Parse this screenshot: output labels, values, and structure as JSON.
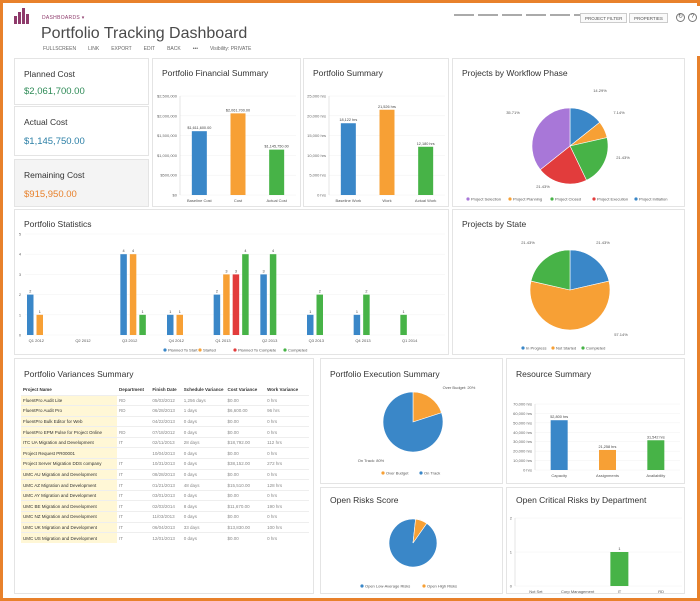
{
  "header": {
    "breadcrumb": "DASHBOARDS ▾",
    "title": "Portfolio Tracking Dashboard",
    "menu": [
      "FULLSCREEN",
      "LINK",
      "EXPORT",
      "EDIT",
      "BACK",
      "•••",
      "Visibility: PRIVATE"
    ],
    "project_filter": "PROJECT FILTER",
    "properties": "PROPERTIES",
    "refresh_icon": "refresh-icon",
    "help_icon": "help-icon"
  },
  "kpis": {
    "planned_cost": {
      "label": "Planned Cost",
      "value": "$2,061,700.00",
      "color": "#2e8b57"
    },
    "actual_cost": {
      "label": "Actual Cost",
      "value": "$1,145,750.00",
      "color": "#2b7fa6"
    },
    "remaining_cost": {
      "label": "Remaining Cost",
      "value": "$915,950.00",
      "color": "#e8812b"
    }
  },
  "colors": {
    "blue": "#3a87c8",
    "orange": "#f7a035",
    "green": "#47b347",
    "red": "#e23c3c",
    "purple": "#a877d8"
  },
  "financial": {
    "title": "Portfolio Financial Summary",
    "chart_data": {
      "type": "bar",
      "categories": [
        "Baseline Cost",
        "Cost",
        "Actual Cost"
      ],
      "values": [
        1611600,
        2061700,
        1145750
      ],
      "labels": [
        "$1,611,600.00",
        "$2,061,700.00",
        "$1,145,750.00"
      ],
      "yticks": [
        "$0",
        "$500,000",
        "$1,000,000",
        "$1,500,000",
        "$2,000,000",
        "$2,500,000"
      ],
      "ylim": [
        0,
        2500000
      ]
    }
  },
  "summary": {
    "title": "Portfolio Summary",
    "chart_data": {
      "type": "bar",
      "categories": [
        "Baseline Work",
        "Work",
        "Actual Work"
      ],
      "values": [
        18122,
        21526,
        12180
      ],
      "labels": [
        "18,122 hrs",
        "21,526 hrs",
        "12,180 hrs"
      ],
      "yticks": [
        "0 hrs",
        "5,000 hrs",
        "10,000 hrs",
        "15,000 hrs",
        "20,000 hrs",
        "25,000 hrs"
      ],
      "ylim": [
        0,
        25000
      ]
    }
  },
  "workflow": {
    "title": "Projects by Workflow Phase",
    "chart_data": {
      "type": "pie",
      "slices": [
        {
          "name": "Project Initiation",
          "value": 14.29
        },
        {
          "name": "Project Planning",
          "value": 7.14
        },
        {
          "name": "Project Closed",
          "value": 21.43
        },
        {
          "name": "Project Execution",
          "value": 21.43
        },
        {
          "name": "Project Selection",
          "value": 35.71
        }
      ],
      "labels": [
        "14.29%",
        "7.14%",
        "21.43%",
        "21.43%",
        "35.71%"
      ],
      "legend": [
        "Project Selection",
        "Project Planning",
        "Project Closed",
        "Project Execution",
        "Project Initiation"
      ]
    }
  },
  "statistics": {
    "title": "Portfolio Statistics",
    "chart_data": {
      "type": "bar",
      "categories": [
        "Q1 2012",
        "Q2 2012",
        "Q3 2012",
        "Q4 2012",
        "Q1 2013",
        "Q2 2013",
        "Q3 2013",
        "Q4 2013",
        "Q1 2014"
      ],
      "series": [
        {
          "name": "Planned To Start",
          "values": [
            2,
            0,
            4,
            1,
            2,
            3,
            1,
            1,
            0
          ]
        },
        {
          "name": "Started",
          "values": [
            1,
            0,
            4,
            1,
            3,
            0,
            0,
            0,
            0
          ]
        },
        {
          "name": "Planned To Complete",
          "values": [
            0,
            0,
            0,
            0,
            3,
            0,
            0,
            0,
            0
          ]
        },
        {
          "name": "Completed",
          "values": [
            0,
            0,
            1,
            0,
            4,
            4,
            2,
            2,
            1
          ]
        }
      ],
      "yticks": [
        "0",
        "1",
        "2",
        "3",
        "4",
        "5"
      ],
      "ylim": [
        0,
        5
      ]
    }
  },
  "state": {
    "title": "Projects by State",
    "chart_data": {
      "type": "pie",
      "slices": [
        {
          "name": "In Progress",
          "value": 21.43
        },
        {
          "name": "Not Started",
          "value": 57.14
        },
        {
          "name": "Completed",
          "value": 21.43
        }
      ],
      "labels": [
        "21.43%",
        "57.14%",
        "21.43%"
      ],
      "legend": [
        "In Progress",
        "Not Started",
        "Completed"
      ]
    }
  },
  "variances": {
    "title": "Portfolio Variances Summary",
    "columns": [
      "Project Name",
      "Department",
      "Finish Date",
      "Schedule Variance",
      "Cost Variance",
      "Work Variance"
    ],
    "rows": [
      [
        "FluentPro Audit Lite",
        "RD",
        "05/03/2012",
        "1,256 days",
        "$0.00",
        "0 hrs"
      ],
      [
        "FluentPro Audit Pro",
        "RD",
        "06/28/2013",
        "1 days",
        "$6,600.00",
        "96 hrs"
      ],
      [
        "FluentPro Bulk Editor for Web",
        "",
        "04/22/2013",
        "0 days",
        "$0.00",
        "0 hrs"
      ],
      [
        "FluentPro EPM Pulse for Project Online",
        "RD",
        "07/18/2012",
        "0 days",
        "$0.00",
        "0 hrs"
      ],
      [
        "ITC UA Migration and Development",
        "IT",
        "02/11/2013",
        "28 days",
        "$18,792.00",
        "112 hrs"
      ],
      [
        "Project Request PR00001",
        "",
        "10/04/2013",
        "0 days",
        "$0.00",
        "0 hrs"
      ],
      [
        "Project Server Migration DDS company",
        "IT",
        "10/31/2013",
        "0 days",
        "$38,152.00",
        "272 hrs"
      ],
      [
        "UMC AU Migration and Development",
        "IT",
        "08/28/2013",
        "0 days",
        "$0.00",
        "0 hrs"
      ],
      [
        "UMC AZ Migration and Development",
        "IT",
        "01/21/2013",
        "48 days",
        "$15,510.00",
        "128 hrs"
      ],
      [
        "UMC AY Migration and Development",
        "IT",
        "03/01/2013",
        "0 days",
        "$0.00",
        "0 hrs"
      ],
      [
        "UMC BE Migration and Development",
        "IT",
        "02/03/2014",
        "8 days",
        "$11,670.00",
        "190 hrs"
      ],
      [
        "UMC NZ Migration and Development",
        "IT",
        "11/03/2013",
        "0 days",
        "$0.00",
        "0 hrs"
      ],
      [
        "UMC UK Migration and Development",
        "IT",
        "06/04/2013",
        "33 days",
        "$13,830.00",
        "100 hrs"
      ],
      [
        "UMC US Migration and Development",
        "IT",
        "12/01/2013",
        "0 days",
        "$0.00",
        "0 hrs"
      ]
    ]
  },
  "execution": {
    "title": "Portfolio Execution Summary",
    "chart_data": {
      "type": "pie",
      "slices": [
        {
          "name": "Over Budget",
          "value": 20
        },
        {
          "name": "On Track",
          "value": 80
        }
      ],
      "labels": [
        "Over Budget: 20%",
        "On Track: 80%"
      ],
      "legend": [
        "Over Budget",
        "On Track"
      ]
    }
  },
  "resources": {
    "title": "Resource Summary",
    "chart_data": {
      "type": "bar",
      "categories": [
        "Capacity",
        "Assignments",
        "Availability"
      ],
      "values": [
        52800,
        21258,
        31542
      ],
      "labels": [
        "52,800 hrs",
        "21,258 hrs",
        "31,542 hrs"
      ],
      "yticks": [
        "0 hrs",
        "10,000 hrs",
        "20,000 hrs",
        "30,000 hrs",
        "40,000 hrs",
        "50,000 hrs",
        "60,000 hrs",
        "70,000 hrs"
      ],
      "ylim": [
        0,
        70000
      ]
    }
  },
  "risks": {
    "title": "Open Risks Score",
    "chart_data": {
      "type": "pie",
      "slices": [
        {
          "name": "Open Low-Average Risks",
          "value": 92
        },
        {
          "name": "Open High Risks",
          "value": 8
        }
      ],
      "labels": [
        "Open Low-Average Risks",
        "Open High Risks"
      ],
      "legend": [
        "Open Low-Average Risks",
        "Open High Risks"
      ]
    }
  },
  "critical": {
    "title": "Open Critical Risks by Department",
    "chart_data": {
      "type": "bar",
      "categories": [
        "Not Set",
        "Corp Management",
        "IT",
        "RD"
      ],
      "values": [
        0,
        0,
        1,
        0
      ],
      "labels": [
        "",
        "",
        "1",
        ""
      ],
      "yticks": [
        "0",
        "1",
        "2"
      ],
      "ylim": [
        0,
        2
      ]
    }
  }
}
